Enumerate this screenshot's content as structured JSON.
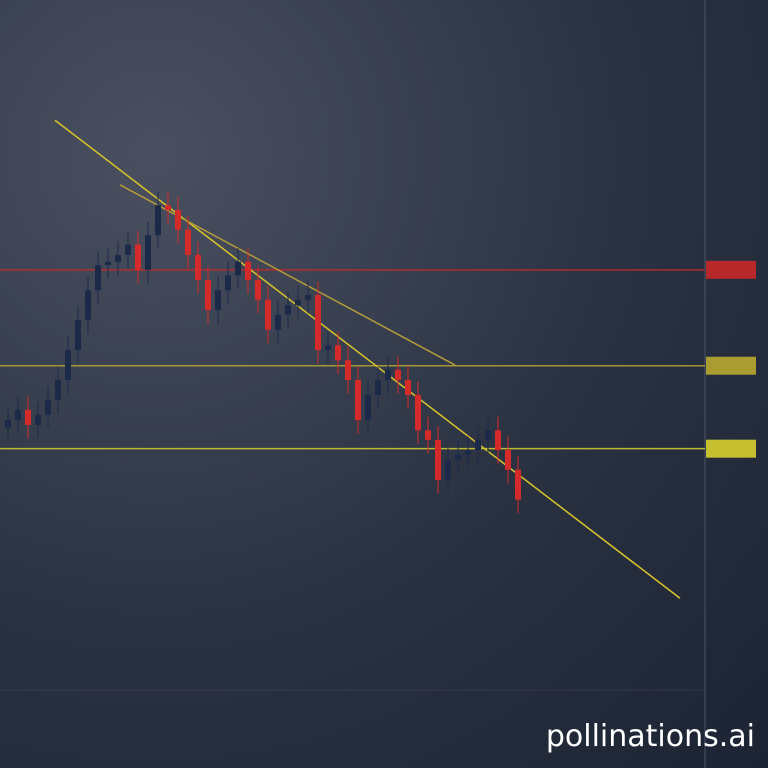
{
  "chart_data": {
    "type": "candlestick",
    "open": [
      43.0,
      44.1,
      45.6,
      43.4,
      44.9,
      47.1,
      50.0,
      54.4,
      58.8,
      63.2,
      66.9,
      67.4,
      68.4,
      69.9,
      66.2,
      71.3,
      75.7,
      75.0,
      72.1,
      68.4,
      64.7,
      60.3,
      63.2,
      65.4,
      67.4,
      64.7,
      61.8,
      57.4,
      59.6,
      61.0,
      61.8,
      62.5,
      54.4,
      55.1,
      52.9,
      50.0,
      44.1,
      47.8,
      50.0,
      51.5,
      50.0,
      47.8,
      42.6,
      41.2,
      35.3,
      38.2,
      39.0,
      39.7,
      41.2,
      42.6,
      39.7,
      36.8
    ],
    "high": [
      46.1,
      47.6,
      47.6,
      46.9,
      49.1,
      52,
      56.4,
      60.8,
      65.2,
      68.9,
      69.4,
      70.4,
      71.9,
      71.9,
      73.3,
      77.7,
      77.7,
      77.0,
      74.1,
      70.4,
      66.7,
      65.2,
      67.4,
      69.4,
      69.4,
      66.7,
      63.8,
      61.6,
      63.0,
      63.8,
      64.5,
      64.5,
      57.1,
      57.1,
      54.9,
      52,
      49.8,
      52,
      53.5,
      53.5,
      52,
      49.8,
      44.6,
      43.2,
      40.2,
      41.0,
      41.7,
      43.2,
      44.6,
      44.6,
      41.7,
      38.8
    ],
    "low": [
      41.0,
      42.1,
      41.4,
      41.4,
      42.9,
      45.1,
      48,
      52.4,
      56.8,
      61.2,
      64.9,
      65.4,
      66.4,
      64.2,
      64.2,
      69.3,
      73.0,
      70.1,
      66.4,
      62.7,
      58.3,
      58.3,
      61.2,
      63.4,
      62.7,
      59.8,
      55.4,
      55.4,
      57.6,
      59.0,
      59.8,
      52.4,
      52.4,
      50.9,
      48,
      42.1,
      42.1,
      45.8,
      48,
      48,
      45.8,
      40.6,
      39.2,
      33.3,
      33.3,
      36.2,
      37.0,
      37.7,
      39.2,
      37.7,
      34.8,
      30.4
    ],
    "close": [
      44.1,
      45.6,
      43.4,
      44.9,
      47.1,
      50.0,
      54.4,
      58.8,
      63.2,
      66.9,
      67.4,
      68.4,
      69.9,
      66.2,
      71.3,
      75.7,
      75.0,
      72.1,
      68.4,
      64.7,
      60.3,
      63.2,
      65.4,
      67.4,
      64.7,
      61.8,
      57.4,
      59.6,
      61.0,
      61.8,
      62.5,
      54.4,
      55.1,
      52.9,
      50.0,
      44.1,
      47.8,
      50.0,
      51.5,
      50.0,
      47.8,
      42.6,
      41.2,
      35.3,
      38.2,
      39.0,
      39.7,
      41.2,
      42.6,
      39.7,
      36.8,
      32.4
    ],
    "up_color": "#1c2a4a",
    "down_color": "#d42a2a",
    "ylim": [
      0,
      100
    ],
    "levels": [
      {
        "value": 66.2,
        "color": "#c62828"
      },
      {
        "value": 52.1,
        "color": "#b8a830"
      },
      {
        "value": 39.9,
        "color": "#d8d030"
      }
    ],
    "trendlines": [
      {
        "x": [
          4.7,
          67.2
        ],
        "values": [
          88.2,
          17.9
        ],
        "color": "#d9c42a"
      },
      {
        "x": [
          11.2,
          44.7
        ],
        "values": [
          78.7,
          52.2
        ],
        "color": "#b59a3a"
      }
    ],
    "watermark": "pollinations.ai"
  }
}
